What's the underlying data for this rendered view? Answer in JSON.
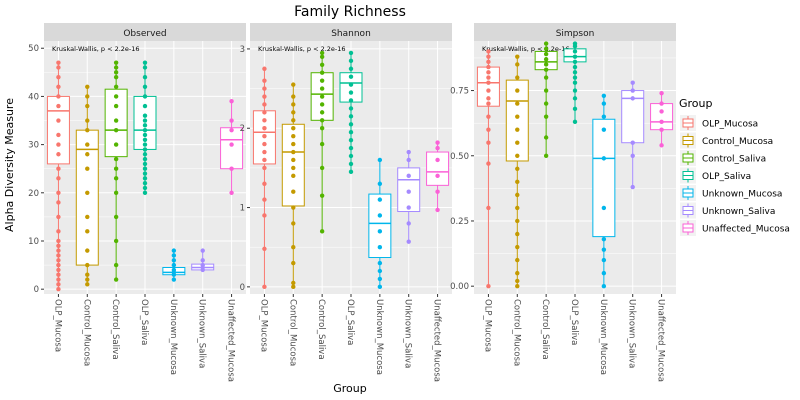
{
  "chart_data": {
    "type": "box",
    "title": "Family Richness",
    "xlabel": "Group",
    "ylabel": "Alpha Diversity Measure",
    "legend_title": "Group",
    "legend_position": "right",
    "grid": true,
    "groups": [
      "OLP_Mucosa",
      "Control_Mucosa",
      "Control_Saliva",
      "OLP_Saliva",
      "Unknown_Mucosa",
      "Unknown_Saliva",
      "Unaffected_Mucosa"
    ],
    "colors": [
      "#F8766D",
      "#C49A00",
      "#53B400",
      "#00C094",
      "#00B6EB",
      "#A58AFF",
      "#FB61D7"
    ],
    "panels": [
      {
        "name": "Observed",
        "annotation": "Kruskal-Wallis, p < 2.2e-16",
        "ylim": [
          -1,
          51.5
        ],
        "yticks": [
          0,
          10,
          20,
          30,
          40,
          50
        ],
        "boxes": [
          {
            "q1": 26,
            "median": 37,
            "q3": 40,
            "lower": 0,
            "upper": 47
          },
          {
            "q1": 5,
            "median": 29,
            "q3": 33,
            "lower": 1,
            "upper": 42
          },
          {
            "q1": 27.5,
            "median": 33,
            "q3": 41.5,
            "lower": 2,
            "upper": 47
          },
          {
            "q1": 29,
            "median": 33,
            "q3": 40,
            "lower": 20,
            "upper": 47
          },
          {
            "q1": 3,
            "median": 3.5,
            "q3": 4.5,
            "lower": 2,
            "upper": 8
          },
          {
            "q1": 4,
            "median": 4.5,
            "q3": 5.2,
            "lower": 4,
            "upper": 8
          },
          {
            "q1": 25,
            "median": 31,
            "q3": 33.5,
            "lower": 20,
            "upper": 39
          }
        ],
        "points": [
          [
            0,
            1,
            2,
            3,
            4,
            5,
            6,
            7,
            8,
            9,
            10,
            12,
            15,
            18,
            20,
            23,
            25,
            28,
            30,
            32,
            35,
            38,
            40,
            42,
            44,
            46,
            47
          ],
          [
            1,
            2,
            3,
            5,
            8,
            12,
            15,
            20,
            25,
            28,
            30,
            33,
            35,
            38,
            40,
            42
          ],
          [
            2,
            5,
            10,
            15,
            20,
            23,
            25,
            27,
            30,
            33,
            35,
            38,
            40,
            42,
            44,
            45,
            46,
            47
          ],
          [
            20,
            21,
            22,
            23,
            24,
            25,
            26,
            27,
            28,
            29,
            30,
            31,
            32,
            33,
            34,
            35,
            36,
            38,
            40,
            42,
            44,
            46,
            47
          ],
          [
            2,
            3,
            3.5,
            4,
            5,
            6,
            7,
            8
          ],
          [
            4,
            4.5,
            5,
            6,
            8
          ],
          [
            20,
            25,
            30,
            33,
            35,
            39
          ]
        ]
      },
      {
        "name": "Shannon",
        "annotation": "Kruskal-Wallis, p < 2.2e-16",
        "ylim": [
          -0.09,
          3.1
        ],
        "yticks": [
          0,
          1,
          2,
          3
        ],
        "boxes": [
          {
            "q1": 1.55,
            "median": 1.95,
            "q3": 2.22,
            "lower": 0,
            "upper": 2.75
          },
          {
            "q1": 1.02,
            "median": 1.7,
            "q3": 2.05,
            "lower": 0,
            "upper": 2.55
          },
          {
            "q1": 2.1,
            "median": 2.43,
            "q3": 2.7,
            "lower": 0.7,
            "upper": 2.95
          },
          {
            "q1": 2.33,
            "median": 2.57,
            "q3": 2.7,
            "lower": 1.45,
            "upper": 2.95
          },
          {
            "q1": 0.37,
            "median": 0.8,
            "q3": 1.17,
            "lower": 0,
            "upper": 1.6
          },
          {
            "q1": 0.95,
            "median": 1.35,
            "q3": 1.5,
            "lower": 0.57,
            "upper": 1.7
          },
          {
            "q1": 1.28,
            "median": 1.45,
            "q3": 1.7,
            "lower": 0.97,
            "upper": 1.82
          }
        ],
        "points": [
          [
            0,
            0.48,
            0.9,
            1.1,
            1.3,
            1.5,
            1.6,
            1.7,
            1.8,
            1.9,
            2.0,
            2.1,
            2.2,
            2.3,
            2.4,
            2.5,
            2.6,
            2.75
          ],
          [
            0,
            0.05,
            0.3,
            0.5,
            0.8,
            1.0,
            1.2,
            1.4,
            1.5,
            1.6,
            1.7,
            1.8,
            1.9,
            2.0,
            2.1,
            2.2,
            2.3,
            2.4,
            2.55
          ],
          [
            0.7,
            1.15,
            1.5,
            1.8,
            2.0,
            2.1,
            2.2,
            2.3,
            2.4,
            2.5,
            2.6,
            2.7,
            2.8,
            2.9,
            2.95
          ],
          [
            1.45,
            1.55,
            1.65,
            1.75,
            1.85,
            1.95,
            2.05,
            2.15,
            2.25,
            2.35,
            2.45,
            2.55,
            2.65,
            2.75,
            2.85,
            2.95
          ],
          [
            0,
            0.1,
            0.2,
            0.3,
            0.5,
            0.7,
            0.9,
            1.1,
            1.3,
            1.6
          ],
          [
            0.57,
            0.8,
            1.0,
            1.2,
            1.4,
            1.6,
            1.7
          ],
          [
            0.97,
            1.2,
            1.4,
            1.6,
            1.75,
            1.82
          ]
        ]
      },
      {
        "name": "Simpson",
        "annotation": "Kruskal-Wallis, p < 2.2e-16",
        "ylim": [
          -0.03,
          0.94
        ],
        "yticks": [
          0.0,
          0.25,
          0.5,
          0.75
        ],
        "boxes": [
          {
            "q1": 0.69,
            "median": 0.78,
            "q3": 0.84,
            "lower": 0,
            "upper": 0.9
          },
          {
            "q1": 0.48,
            "median": 0.71,
            "q3": 0.79,
            "lower": 0,
            "upper": 0.88
          },
          {
            "q1": 0.83,
            "median": 0.86,
            "q3": 0.9,
            "lower": 0.5,
            "upper": 0.93
          },
          {
            "q1": 0.86,
            "median": 0.88,
            "q3": 0.91,
            "lower": 0.63,
            "upper": 0.93
          },
          {
            "q1": 0.19,
            "median": 0.49,
            "q3": 0.64,
            "lower": 0,
            "upper": 0.73
          },
          {
            "q1": 0.55,
            "median": 0.72,
            "q3": 0.75,
            "lower": 0.38,
            "upper": 0.78
          },
          {
            "q1": 0.6,
            "median": 0.63,
            "q3": 0.7,
            "lower": 0.54,
            "upper": 0.74
          }
        ],
        "points": [
          [
            0,
            0.3,
            0.47,
            0.55,
            0.6,
            0.65,
            0.7,
            0.72,
            0.75,
            0.78,
            0.8,
            0.82,
            0.84,
            0.86,
            0.88,
            0.9
          ],
          [
            0,
            0.02,
            0.05,
            0.1,
            0.15,
            0.2,
            0.25,
            0.3,
            0.35,
            0.4,
            0.45,
            0.5,
            0.55,
            0.6,
            0.65,
            0.7,
            0.75,
            0.8,
            0.85,
            0.88
          ],
          [
            0.5,
            0.57,
            0.65,
            0.7,
            0.75,
            0.8,
            0.83,
            0.85,
            0.87,
            0.89,
            0.91,
            0.93
          ],
          [
            0.63,
            0.68,
            0.72,
            0.75,
            0.78,
            0.8,
            0.82,
            0.84,
            0.86,
            0.88,
            0.9,
            0.92,
            0.93
          ],
          [
            0,
            0.05,
            0.1,
            0.14,
            0.18,
            0.3,
            0.49,
            0.6,
            0.65,
            0.7,
            0.73
          ],
          [
            0.38,
            0.5,
            0.55,
            0.72,
            0.75,
            0.78
          ],
          [
            0.54,
            0.6,
            0.63,
            0.67,
            0.7,
            0.74
          ]
        ]
      }
    ]
  }
}
